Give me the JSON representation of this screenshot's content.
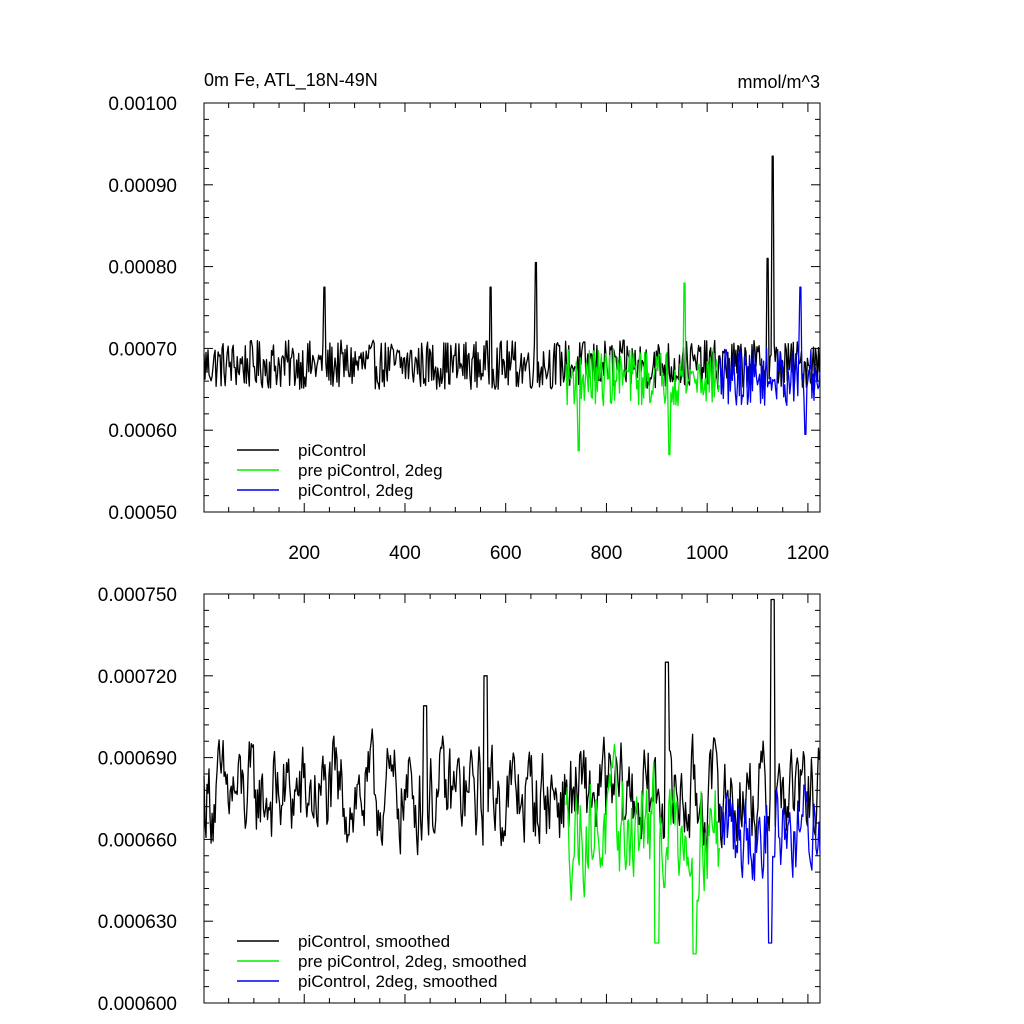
{
  "figure": {
    "title_left": "0m Fe, ATL_18N-49N",
    "title_right": "mmol/m^3"
  },
  "colors": {
    "piControl": "#000000",
    "pre_piControl_2deg": "#00ee00",
    "piControl_2deg": "#0000ee"
  },
  "chart_data": [
    {
      "type": "line",
      "name": "raw",
      "xlim": [
        1,
        1224
      ],
      "ylim": [
        0.0005,
        0.001
      ],
      "x_ticks": [
        200,
        400,
        600,
        800,
        1000,
        1200
      ],
      "x_tick_labels": [
        "200",
        "400",
        "600",
        "800",
        "1000",
        "1200"
      ],
      "y_ticks": [
        0.0005,
        0.0006,
        0.0007,
        0.0008,
        0.0009,
        0.001
      ],
      "y_tick_labels": [
        "0.00050",
        "0.00060",
        "0.00070",
        "0.00080",
        "0.00090",
        "0.00100"
      ],
      "legend_position": "bottom-left",
      "series": [
        {
          "name": "piControl",
          "color_key": "piControl",
          "x_range": [
            1,
            1224
          ],
          "mean": 0.00068,
          "spread": 3e-05,
          "peaks": [
            [
              240,
              0.000775
            ],
            [
              570,
              0.000775
            ],
            [
              660,
              0.000805
            ],
            [
              1120,
              0.00081
            ],
            [
              1130,
              0.000935
            ]
          ]
        },
        {
          "name": "pre piControl, 2deg",
          "color_key": "pre_piControl_2deg",
          "x_range": [
            720,
            1024
          ],
          "mean": 0.000665,
          "spread": 3.5e-05,
          "peaks": [
            [
              955,
              0.00078
            ],
            [
              745,
              0.000575
            ],
            [
              925,
              0.00057
            ]
          ]
        },
        {
          "name": "piControl, 2deg",
          "color_key": "piControl_2deg",
          "x_range": [
            1024,
            1224
          ],
          "mean": 0.000665,
          "spread": 3.5e-05,
          "peaks": [
            [
              1185,
              0.000775
            ],
            [
              1195,
              0.000595
            ]
          ]
        }
      ]
    },
    {
      "type": "line",
      "name": "smoothed",
      "xlim": [
        1,
        1224
      ],
      "ylim": [
        0.0006,
        0.00075
      ],
      "x_ticks": [
        200,
        400,
        600,
        800,
        1000,
        1200
      ],
      "x_tick_labels": [
        "",
        "",
        "",
        "",
        "",
        ""
      ],
      "y_ticks": [
        0.0006,
        0.00063,
        0.00066,
        0.00069,
        0.00072,
        0.00075
      ],
      "y_tick_labels": [
        "0.000600",
        "0.000630",
        "0.000660",
        "0.000690",
        "0.000720",
        "0.000750"
      ],
      "legend_position": "bottom-left",
      "series": [
        {
          "name": "piControl, smoothed",
          "color_key": "piControl",
          "x_range": [
            1,
            1224
          ],
          "mean": 0.000676,
          "spread": 1.6e-05,
          "peaks": [
            [
              440,
              0.000709
            ],
            [
              560,
              0.00072
            ],
            [
              920,
              0.000725
            ],
            [
              1130,
              0.000748
            ]
          ]
        },
        {
          "name": "pre piControl, 2deg, smoothed",
          "color_key": "pre_piControl_2deg",
          "x_range": [
            720,
            1024
          ],
          "mean": 0.000664,
          "spread": 1.8e-05,
          "peaks": [
            [
              900,
              0.000622
            ],
            [
              975,
              0.000618
            ]
          ]
        },
        {
          "name": "piControl, 2deg, smoothed",
          "color_key": "piControl_2deg",
          "x_range": [
            1024,
            1224
          ],
          "mean": 0.000664,
          "spread": 1.6e-05,
          "peaks": [
            [
              1125,
              0.000622
            ]
          ]
        }
      ]
    }
  ]
}
